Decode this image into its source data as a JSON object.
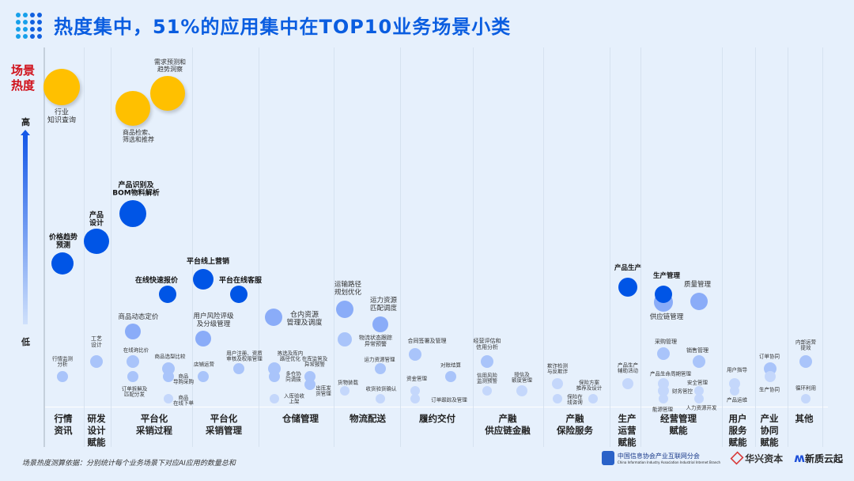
{
  "title": "热度集中，51%的应用集中在TOP10业务场景小类",
  "axis": {
    "label": "场景\n热度",
    "high": "高",
    "low": "低"
  },
  "colors": {
    "title": "#0a5de0",
    "heat_label": "#d0101a",
    "highest": "#FFC000",
    "high": "#0055E6",
    "medium": "#8AACF8",
    "low": "#A9C4FA",
    "lowest": "#C4D7FB"
  },
  "categories": [
    "行情\n资讯",
    "研发\n设计\n赋能",
    "平台化\n采销过程",
    "平台化\n采销管理",
    "仓储管理",
    "物流配送",
    "履约交付",
    "产融\n供应链金融",
    "产融\n保险服务",
    "生产\n运营\n赋能",
    "经营管理\n赋能",
    "用户\n服务\n赋能",
    "产业\n协同\n赋能",
    "其他"
  ],
  "scenarios": [
    {
      "label": "行业\n知识查询",
      "category": "行情资讯",
      "heat": "highest"
    },
    {
      "label": "商品检索、\n筛选和推荐",
      "category": "平台化采销过程",
      "heat": "highest"
    },
    {
      "label": "需求预测和\n趋势洞察",
      "category": "平台化采销过程",
      "heat": "highest"
    },
    {
      "label": "产品识别及\nBOM物料解析",
      "category": "平台化采销过程",
      "heat": "high"
    },
    {
      "label": "产品\n设计",
      "category": "研发设计赋能",
      "heat": "high"
    },
    {
      "label": "价格趋势\n预测",
      "category": "行情资讯",
      "heat": "high"
    },
    {
      "label": "平台线上营销",
      "category": "平台化采销管理",
      "heat": "high"
    },
    {
      "label": "在线快速报价",
      "category": "平台化采销过程",
      "heat": "high"
    },
    {
      "label": "平台在线客服",
      "category": "平台化采销管理",
      "heat": "high"
    },
    {
      "label": "仓内资源\n管理及调度",
      "category": "仓储管理",
      "heat": "medium"
    },
    {
      "label": "运输路径\n规划优化",
      "category": "物流配送",
      "heat": "medium"
    },
    {
      "label": "运力资源\n匹配调度",
      "category": "物流配送",
      "heat": "medium"
    },
    {
      "label": "商品动态定价",
      "category": "平台化采销过程",
      "heat": "medium"
    },
    {
      "label": "用户风险评级\n及分级管理",
      "category": "平台化采销管理",
      "heat": "medium"
    },
    {
      "label": "物流状态跟踪\n异常预警",
      "category": "物流配送",
      "heat": "low"
    },
    {
      "label": "合同签署及管理",
      "category": "履约交付",
      "heat": "low"
    },
    {
      "label": "经营评估和\n信用分析",
      "category": "产融供应链金融",
      "heat": "low"
    },
    {
      "label": "工艺\n设计",
      "category": "研发设计赋能",
      "heat": "low"
    },
    {
      "label": "行情监测\n分析",
      "category": "行情资讯",
      "heat": "low"
    },
    {
      "label": "在线询比价",
      "category": "平台化采销过程",
      "heat": "low"
    },
    {
      "label": "订单拆解及\n匹配分发",
      "category": "平台化采销过程",
      "heat": "low"
    },
    {
      "label": "商品选型比较",
      "category": "平台化采销过程",
      "heat": "low"
    },
    {
      "label": "商品\n导购采购",
      "category": "平台化采销过程",
      "heat": "low"
    },
    {
      "label": "商品\n在线下单",
      "category": "平台化采销过程",
      "heat": "lowest"
    },
    {
      "label": "店铺运营",
      "category": "平台化采销管理",
      "heat": "low"
    },
    {
      "label": "用户注册、资质\n审核及权限管理",
      "category": "平台化采销管理",
      "heat": "low"
    },
    {
      "label": "拣选及库内\n路径优化",
      "category": "仓储管理",
      "heat": "low"
    },
    {
      "label": "多仓协\n同调拨",
      "category": "仓储管理",
      "heat": "low"
    },
    {
      "label": "在库监管及\n异常报警",
      "category": "仓储管理",
      "heat": "low"
    },
    {
      "label": "出库发\n货管理",
      "category": "仓储管理",
      "heat": "low"
    },
    {
      "label": "入库验收\n上架",
      "category": "仓储管理",
      "heat": "lowest"
    },
    {
      "label": "运力资源管理",
      "category": "物流配送",
      "heat": "low"
    },
    {
      "label": "货物装载",
      "category": "物流配送",
      "heat": "lowest"
    },
    {
      "label": "收货验货确认",
      "category": "物流配送",
      "heat": "lowest"
    },
    {
      "label": "对账结算",
      "category": "履约交付",
      "heat": "low"
    },
    {
      "label": "资金管理",
      "category": "履约交付",
      "heat": "lowest"
    },
    {
      "label": "订单跟踪及管理",
      "category": "履约交付",
      "heat": "lowest"
    },
    {
      "label": "信用风险\n监测预警",
      "category": "产融供应链金融",
      "heat": "lowest"
    },
    {
      "label": "授信及\n额度管理",
      "category": "产融供应链金融",
      "heat": "lowest"
    },
    {
      "label": "欺诈检测\n与反欺诈",
      "category": "产融保险服务",
      "heat": "lowest"
    },
    {
      "label": "保险在\n线咨询",
      "category": "产融保险服务",
      "heat": "lowest"
    },
    {
      "label": "保险方案\n推荐及设计",
      "category": "产融保险服务",
      "heat": "lowest"
    },
    {
      "label": "产品生产",
      "category": "生产运营赋能",
      "heat": "high"
    },
    {
      "label": "产品生产\n辅助活动",
      "category": "生产运营赋能",
      "heat": "lowest"
    },
    {
      "label": "供应链管理",
      "category": "经营管理赋能",
      "heat": "medium"
    },
    {
      "label": "生产管理",
      "category": "经营管理赋能",
      "heat": "high"
    },
    {
      "label": "质量管理",
      "category": "经营管理赋能",
      "heat": "medium"
    },
    {
      "label": "采购管理",
      "category": "经营管理赋能",
      "heat": "low"
    },
    {
      "label": "销售管理",
      "category": "经营管理赋能",
      "heat": "low"
    },
    {
      "label": "产品生命周期管理",
      "category": "经营管理赋能",
      "heat": "lowest"
    },
    {
      "label": "财务管控",
      "category": "经营管理赋能",
      "heat": "lowest"
    },
    {
      "label": "能源管理",
      "category": "经营管理赋能",
      "heat": "lowest"
    },
    {
      "label": "安全管理",
      "category": "经营管理赋能",
      "heat": "lowest"
    },
    {
      "label": "人力资源开发",
      "category": "经营管理赋能",
      "heat": "lowest"
    },
    {
      "label": "用户指导",
      "category": "用户服务赋能",
      "heat": "lowest"
    },
    {
      "label": "产品运维",
      "category": "用户服务赋能",
      "heat": "lowest"
    },
    {
      "label": "订单协同",
      "category": "产业协同赋能",
      "heat": "low"
    },
    {
      "label": "生产协同",
      "category": "产业协同赋能",
      "heat": "lowest"
    },
    {
      "label": "内部运营\n提效",
      "category": "其他",
      "heat": "low"
    },
    {
      "label": "循环利用",
      "category": "其他",
      "heat": "lowest"
    }
  ],
  "footnote": "场景热度测算依据：分别统计每个业务场景下对应AI应用的数量总和",
  "logos": {
    "ciia": "中国信息协会产业互联网分会",
    "ciia_en": "China Information Industry Association Industrial Internet Branch",
    "huaxing": "华兴资本",
    "xinzhi": "新质云起"
  }
}
